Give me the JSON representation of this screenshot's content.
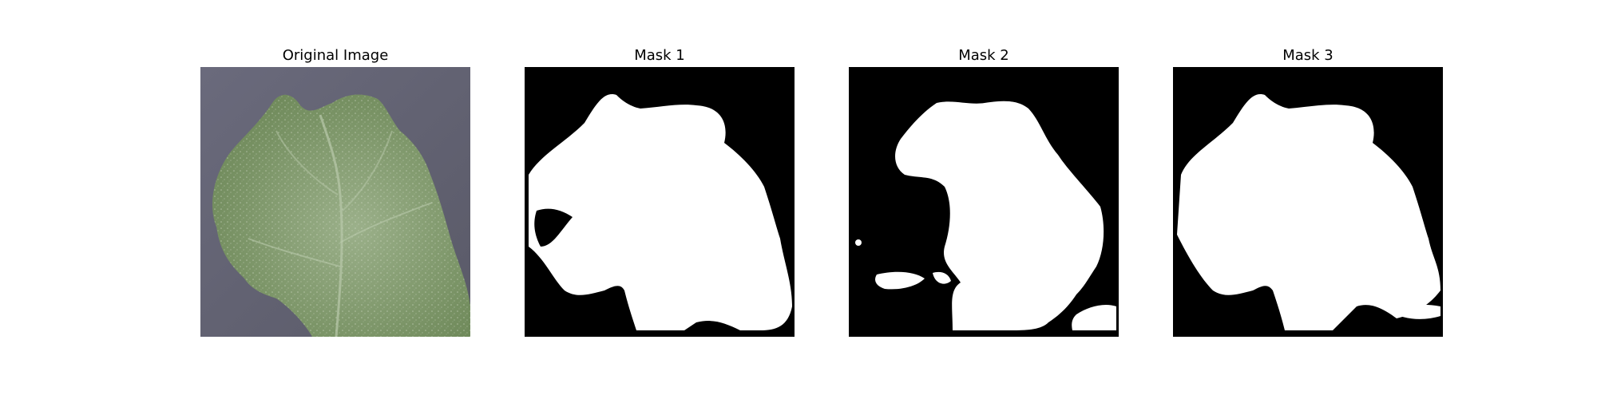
{
  "panels": [
    {
      "title": "Original Image",
      "kind": "photo"
    },
    {
      "title": "Mask 1",
      "kind": "mask"
    },
    {
      "title": "Mask 2",
      "kind": "mask"
    },
    {
      "title": "Mask 3",
      "kind": "mask"
    }
  ],
  "colors": {
    "background": "#5f5f6e",
    "leaf": "#7f9a6c",
    "mask_fg": "#ffffff",
    "mask_bg": "#000000"
  }
}
